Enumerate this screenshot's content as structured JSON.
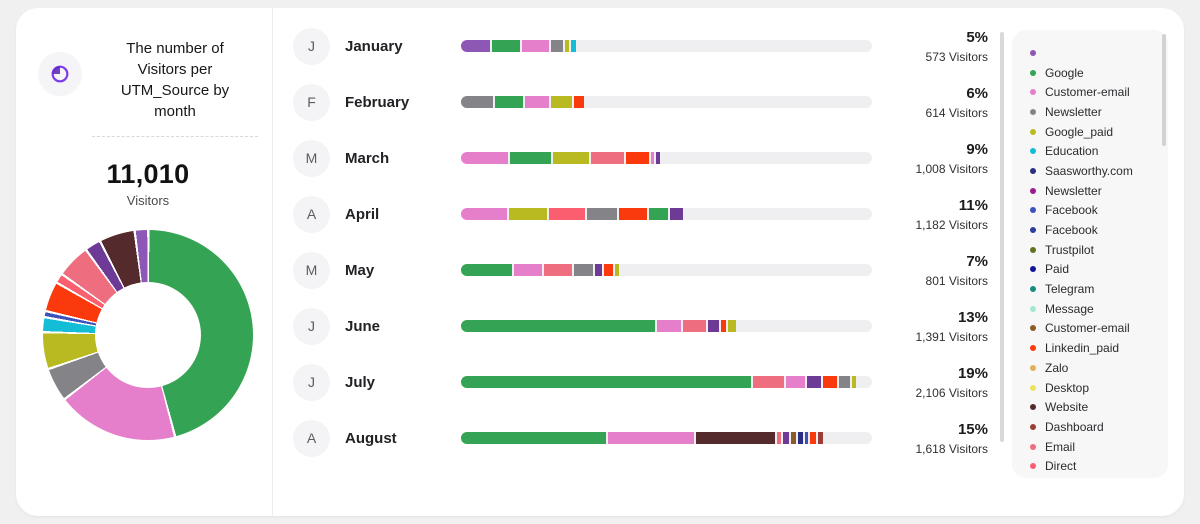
{
  "header": {
    "title": "The number of Visitors per UTM_Source by month",
    "icon": "donut-chart-icon"
  },
  "summary": {
    "total": "11,010",
    "label": "Visitors"
  },
  "colors": {
    "purple": "#8d58b5",
    "purple_dark": "#6d3a96",
    "green": "#34a353",
    "pink": "#e67fcb",
    "gray": "#848488",
    "olive": "#b9ba21",
    "cyan": "#14bdd6",
    "navy": "#2a2e84",
    "magenta": "#9c1b8c",
    "blue": "#3b51bb",
    "blue2": "#2b3f9e",
    "dark_olive": "#5f7321",
    "navy_dark": "#14149c",
    "teal": "#128d7e",
    "mint": "#a5e8cd",
    "brown": "#8a5c28",
    "red": "#fa3a0d",
    "tan": "#e0b05e",
    "yellow": "#ece25f",
    "maroon": "#552a2c",
    "dashboard": "#9e3d38",
    "rose": "#ee6d7f",
    "direct": "#fb5f6f"
  },
  "legend": [
    {
      "label": "",
      "color": "purple"
    },
    {
      "label": "Google",
      "color": "green"
    },
    {
      "label": "Customer-email",
      "color": "pink"
    },
    {
      "label": "Newsletter",
      "color": "gray"
    },
    {
      "label": "Google_paid",
      "color": "olive"
    },
    {
      "label": "Education",
      "color": "cyan"
    },
    {
      "label": "Saasworthy.com",
      "color": "navy"
    },
    {
      "label": "Newsletter",
      "color": "magenta"
    },
    {
      "label": "Facebook",
      "color": "blue"
    },
    {
      "label": "Facebook",
      "color": "blue2"
    },
    {
      "label": "Trustpilot",
      "color": "dark_olive"
    },
    {
      "label": "Paid",
      "color": "navy_dark"
    },
    {
      "label": "Telegram",
      "color": "teal"
    },
    {
      "label": "Message",
      "color": "mint"
    },
    {
      "label": "Customer-email",
      "color": "brown"
    },
    {
      "label": "Linkedin_paid",
      "color": "red"
    },
    {
      "label": "Zalo",
      "color": "tan"
    },
    {
      "label": "Desktop",
      "color": "yellow"
    },
    {
      "label": "Website",
      "color": "maroon"
    },
    {
      "label": "Dashboard",
      "color": "dashboard"
    },
    {
      "label": "Email",
      "color": "rose"
    },
    {
      "label": "Direct",
      "color": "direct"
    }
  ],
  "chart_data": [
    {
      "type": "pie",
      "title": "Visitors by UTM_Source (donut)",
      "total_visitors": 11010,
      "slices": [
        {
          "label": "",
          "color": "purple",
          "value": 1.8
        },
        {
          "label": "Google",
          "color": "green",
          "value": 47
        },
        {
          "label": "Customer-email",
          "color": "pink",
          "value": 19
        },
        {
          "label": "Newsletter",
          "color": "gray",
          "value": 5
        },
        {
          "label": "Google_paid",
          "color": "olive",
          "value": 5.5
        },
        {
          "label": "Education",
          "color": "cyan",
          "value": 2
        },
        {
          "label": "Facebook",
          "color": "blue",
          "value": 0.6
        },
        {
          "label": "Linkedin_paid",
          "color": "red",
          "value": 4.4
        },
        {
          "label": "Direct",
          "color": "direct",
          "value": 1.2
        },
        {
          "label": "Email",
          "color": "rose",
          "value": 5
        },
        {
          "label": "Newsletter",
          "color": "purple_dark",
          "value": 2.2
        },
        {
          "label": "Website",
          "color": "maroon",
          "value": 5.3
        }
      ]
    },
    {
      "type": "bar",
      "stacked": true,
      "orientation": "horizontal",
      "categories": [
        "January",
        "February",
        "March",
        "April",
        "May",
        "June",
        "July",
        "August"
      ],
      "rows": [
        {
          "initial": "J",
          "label": "January",
          "pct": "5%",
          "visitors_label": "573 Visitors",
          "visitors": 573,
          "fill_pct": 28,
          "segments": [
            {
              "source": "",
              "color": "purple",
              "value": 28
            },
            {
              "source": "Google",
              "color": "green",
              "value": 26
            },
            {
              "source": "Customer-email",
              "color": "pink",
              "value": 26
            },
            {
              "source": "Newsletter",
              "color": "gray",
              "value": 11
            },
            {
              "source": "Google_paid",
              "color": "olive",
              "value": 4
            },
            {
              "source": "Education",
              "color": "cyan",
              "value": 5
            }
          ]
        },
        {
          "initial": "F",
          "label": "February",
          "pct": "6%",
          "visitors_label": "614 Visitors",
          "visitors": 614,
          "fill_pct": 30,
          "segments": [
            {
              "source": "Newsletter",
              "color": "gray",
              "value": 27
            },
            {
              "source": "Google",
              "color": "green",
              "value": 24
            },
            {
              "source": "Customer-email",
              "color": "pink",
              "value": 20
            },
            {
              "source": "Google_paid",
              "color": "olive",
              "value": 18
            },
            {
              "source": "Linkedin_paid",
              "color": "red",
              "value": 9
            }
          ]
        },
        {
          "initial": "M",
          "label": "March",
          "pct": "9%",
          "visitors_label": "1,008 Visitors",
          "visitors": 1008,
          "fill_pct": 48.5,
          "segments": [
            {
              "source": "Customer-email",
              "color": "pink",
              "value": 25
            },
            {
              "source": "Google",
              "color": "green",
              "value": 22
            },
            {
              "source": "Google_paid",
              "color": "olive",
              "value": 19
            },
            {
              "source": "Email",
              "color": "rose",
              "value": 18
            },
            {
              "source": "Linkedin_paid",
              "color": "red",
              "value": 12
            },
            {
              "source": "Customer-email",
              "color": "pink",
              "value": 1.5
            },
            {
              "source": "Newsletter",
              "color": "purple_dark",
              "value": 2.5
            }
          ]
        },
        {
          "initial": "A",
          "label": "April",
          "pct": "11%",
          "visitors_label": "1,182 Visitors",
          "visitors": 1182,
          "fill_pct": 54,
          "segments": [
            {
              "source": "Customer-email",
              "color": "pink",
              "value": 22
            },
            {
              "source": "Google_paid",
              "color": "olive",
              "value": 18
            },
            {
              "source": "Direct",
              "color": "direct",
              "value": 17
            },
            {
              "source": "Newsletter",
              "color": "gray",
              "value": 14.5
            },
            {
              "source": "Linkedin_paid",
              "color": "red",
              "value": 13.5
            },
            {
              "source": "Google",
              "color": "green",
              "value": 9
            },
            {
              "source": "Newsletter",
              "color": "purple_dark",
              "value": 6
            }
          ]
        },
        {
          "initial": "M",
          "label": "May",
          "pct": "7%",
          "visitors_label": "801 Visitors",
          "visitors": 801,
          "fill_pct": 38.5,
          "segments": [
            {
              "source": "Google",
              "color": "green",
              "value": 35
            },
            {
              "source": "Customer-email",
              "color": "pink",
              "value": 19
            },
            {
              "source": "Email",
              "color": "rose",
              "value": 19
            },
            {
              "source": "Newsletter",
              "color": "gray",
              "value": 13
            },
            {
              "source": "Newsletter",
              "color": "purple_dark",
              "value": 5
            },
            {
              "source": "Linkedin_paid",
              "color": "red",
              "value": 6
            },
            {
              "source": "Google_paid",
              "color": "olive",
              "value": 3
            }
          ]
        },
        {
          "initial": "J",
          "label": "June",
          "pct": "13%",
          "visitors_label": "1,391 Visitors",
          "visitors": 1391,
          "fill_pct": 67,
          "segments": [
            {
              "source": "Google",
              "color": "green",
              "value": 73
            },
            {
              "source": "Customer-email",
              "color": "pink",
              "value": 9
            },
            {
              "source": "Email",
              "color": "rose",
              "value": 9
            },
            {
              "source": "Newsletter",
              "color": "purple_dark",
              "value": 4
            },
            {
              "source": "Linkedin_paid",
              "color": "red",
              "value": 2
            },
            {
              "source": "Google_paid",
              "color": "olive",
              "value": 3
            }
          ]
        },
        {
          "initial": "J",
          "label": "July",
          "pct": "19%",
          "visitors_label": "2,106 Visitors",
          "visitors": 2106,
          "fill_pct": 96,
          "segments": [
            {
              "source": "Google",
              "color": "green",
              "value": 76
            },
            {
              "source": "Email",
              "color": "rose",
              "value": 8
            },
            {
              "source": "Customer-email",
              "color": "pink",
              "value": 5
            },
            {
              "source": "Newsletter",
              "color": "purple_dark",
              "value": 3.6
            },
            {
              "source": "Linkedin_paid",
              "color": "red",
              "value": 3.8
            },
            {
              "source": "Newsletter",
              "color": "gray",
              "value": 2.8
            },
            {
              "source": "Google_paid",
              "color": "olive",
              "value": 1
            }
          ]
        },
        {
          "initial": "A",
          "label": "August",
          "pct": "15%",
          "visitors_label": "1,618 Visitors",
          "visitors": 1618,
          "fill_pct": 88,
          "segments": [
            {
              "source": "Google",
              "color": "green",
              "value": 42
            },
            {
              "source": "Customer-email",
              "color": "pink",
              "value": 25
            },
            {
              "source": "Website",
              "color": "maroon",
              "value": 23
            },
            {
              "source": "Email",
              "color": "rose",
              "value": 1.2
            },
            {
              "source": "Newsletter",
              "color": "purple_dark",
              "value": 1.7
            },
            {
              "source": "Customer-email",
              "color": "brown",
              "value": 1.4
            },
            {
              "source": "Saasworthy.com",
              "color": "navy",
              "value": 1.4
            },
            {
              "source": "Facebook",
              "color": "blue",
              "value": 0.9
            },
            {
              "source": "Linkedin_paid",
              "color": "red",
              "value": 1.7
            },
            {
              "source": "Dashboard",
              "color": "dashboard",
              "value": 1.4
            }
          ]
        }
      ]
    }
  ]
}
